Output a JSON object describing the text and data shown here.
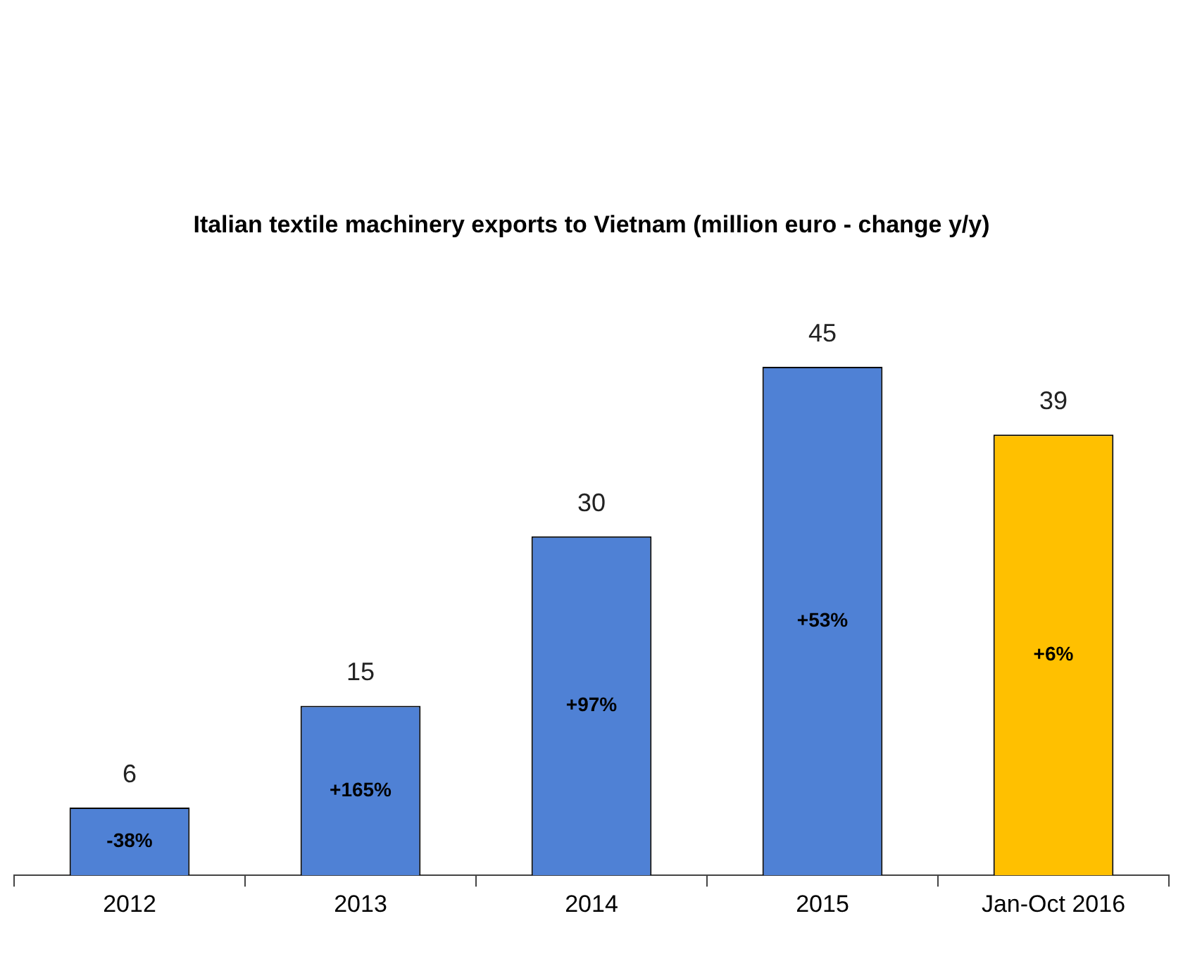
{
  "chart_data": {
    "type": "bar",
    "title": "Italian textile machinery exports to Vietnam (million euro - change y/y)",
    "categories": [
      "2012",
      "2013",
      "2014",
      "2015",
      "Jan-Oct 2016"
    ],
    "values": [
      6,
      15,
      30,
      45,
      39
    ],
    "colors": [
      "#4f81d5",
      "#4f81d5",
      "#4f81d5",
      "#4f81d5",
      "#ffc000"
    ],
    "data_labels": true,
    "grid": false,
    "legend": false,
    "annotations": [
      "-38%",
      "+165%",
      "+97%",
      "+53%",
      "+6%"
    ]
  }
}
